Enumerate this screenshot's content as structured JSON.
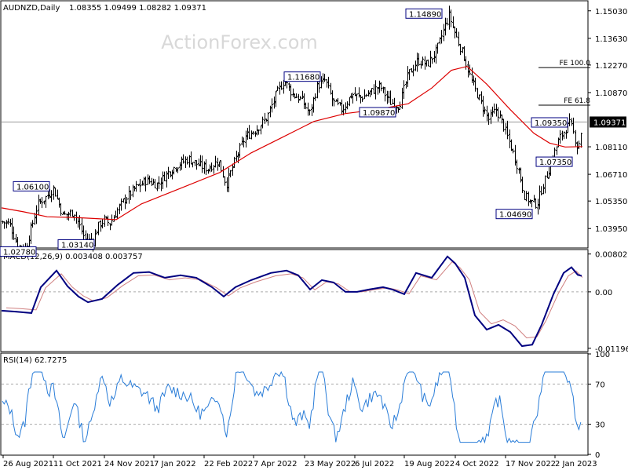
{
  "header": {
    "symbol_label": "AUDNZD,Daily",
    "ohlc_label": "1.08355 1.09499 1.08282 1.09371",
    "watermark": "ActionForex.com"
  },
  "colors": {
    "candle": "#000000",
    "moving_average": "#dd0000",
    "macd_main": "#000080",
    "macd_signal": "#d08080",
    "rsi": "#2a7dd8",
    "price_line": "#999999",
    "grid_dash": "#aaaaaa"
  },
  "chart_data": [
    {
      "type": "candlestick",
      "title": "AUDNZD,Daily",
      "ylim": [
        1.03,
        1.155
      ],
      "y_ticks": [
        "1.15030",
        "1.13630",
        "1.12270",
        "1.10870",
        "1.09371",
        "1.08110",
        "1.06710",
        "1.05350",
        "1.03950"
      ],
      "last_price": "1.09371",
      "series": [
        {
          "name": "",
          "type": "line",
          "color": "#dd0000",
          "x": [
            "26 Aug 2021",
            "11 Oct 2021",
            "24 Nov 2021",
            "7 Jan 2022",
            "22 Feb 2022",
            "7 Apr 2022",
            "23 May 2022",
            "6 Jul 2022",
            "19 Aug 2022",
            "4 Oct 2022",
            "17 Nov 2022",
            "2 Jan 2023"
          ],
          "values": [
            1.05,
            1.046,
            1.046,
            1.06,
            1.072,
            1.084,
            1.098,
            1.101,
            1.108,
            1.123,
            1.09,
            1.081
          ]
        }
      ],
      "annotations": [
        {
          "label": "1.14890",
          "value": 1.1489
        },
        {
          "label": "1.11680",
          "value": 1.1168
        },
        {
          "label": "1.09870",
          "value": 1.0987
        },
        {
          "label": "1.09350",
          "value": 1.0935
        },
        {
          "label": "1.07350",
          "value": 1.0735
        },
        {
          "label": "1.06100",
          "value": 1.061
        },
        {
          "label": "1.04690",
          "value": 1.0469
        },
        {
          "label": "1.03140",
          "value": 1.0314
        },
        {
          "label": "1.02780",
          "value": 1.0278
        }
      ],
      "fib_levels": [
        {
          "label": "FE 100.0",
          "value": 1.1214
        },
        {
          "label": "FE 61.8",
          "value": 1.1023
        }
      ]
    },
    {
      "type": "line",
      "title": "MACD(12,26,9) 0.003408 0.003757",
      "ylim": [
        -0.0125,
        0.0088
      ],
      "y_ticks": [
        "0.008021",
        "0.00",
        "-0.011962"
      ],
      "series": [
        {
          "name": "",
          "color": "#000080"
        },
        {
          "name": "",
          "color": "#d08080"
        }
      ]
    },
    {
      "type": "line",
      "title": "RSI(14) 62.7275",
      "ylim": [
        0,
        100
      ],
      "y_ticks": [
        "100",
        "70",
        "30",
        "0"
      ],
      "levels": [
        70,
        30
      ],
      "series": [
        {
          "name": "",
          "color": "#2a7dd8"
        }
      ]
    }
  ],
  "x_axis": {
    "tick_labels": [
      "26 Aug 2021",
      "11 Oct 2021",
      "24 Nov 2021",
      "7 Jan 2022",
      "22 Feb 2022",
      "7 Apr 2022",
      "23 May 2022",
      "6 Jul 2022",
      "19 Aug 2022",
      "4 Oct 2022",
      "17 Nov 2022",
      "2 Jan 2023"
    ]
  }
}
